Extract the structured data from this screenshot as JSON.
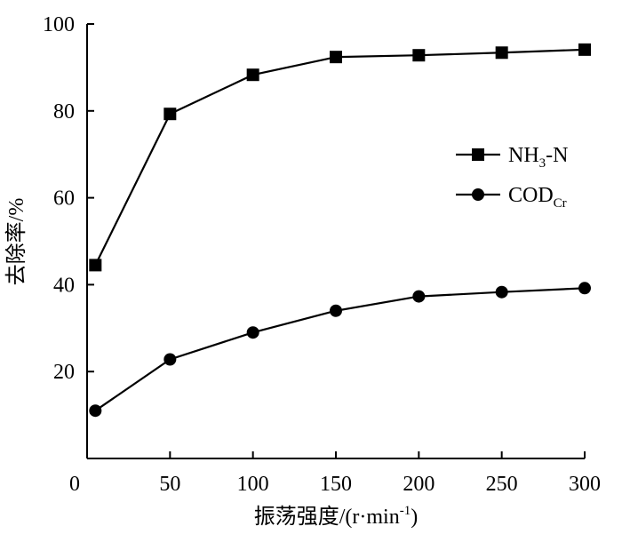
{
  "chart_data": {
    "type": "line",
    "xlabel_main": "振荡强度/(r·min",
    "xlabel_sup": "-1",
    "xlabel_close": ")",
    "ylabel": "去除率/%",
    "xlim": [
      0,
      300
    ],
    "ylim": [
      0,
      100
    ],
    "x_ticks": [
      0,
      50,
      100,
      150,
      200,
      250,
      300
    ],
    "y_ticks": [
      20,
      40,
      60,
      80,
      100
    ],
    "grid": false,
    "legend_position": "right",
    "x": [
      5,
      50,
      100,
      150,
      200,
      250,
      300
    ],
    "series": [
      {
        "name": "NH3-N",
        "label_main": "NH",
        "label_sub": "3",
        "label_tail": "-N",
        "marker": "square",
        "values": [
          44.5,
          79.3,
          88.3,
          92.4,
          92.8,
          93.4,
          94.1
        ]
      },
      {
        "name": "CODCr",
        "label_main": "COD",
        "label_sub": "Cr",
        "label_tail": "",
        "marker": "circle",
        "values": [
          11.0,
          22.8,
          29.0,
          34.0,
          37.3,
          38.3,
          39.2
        ]
      }
    ]
  }
}
